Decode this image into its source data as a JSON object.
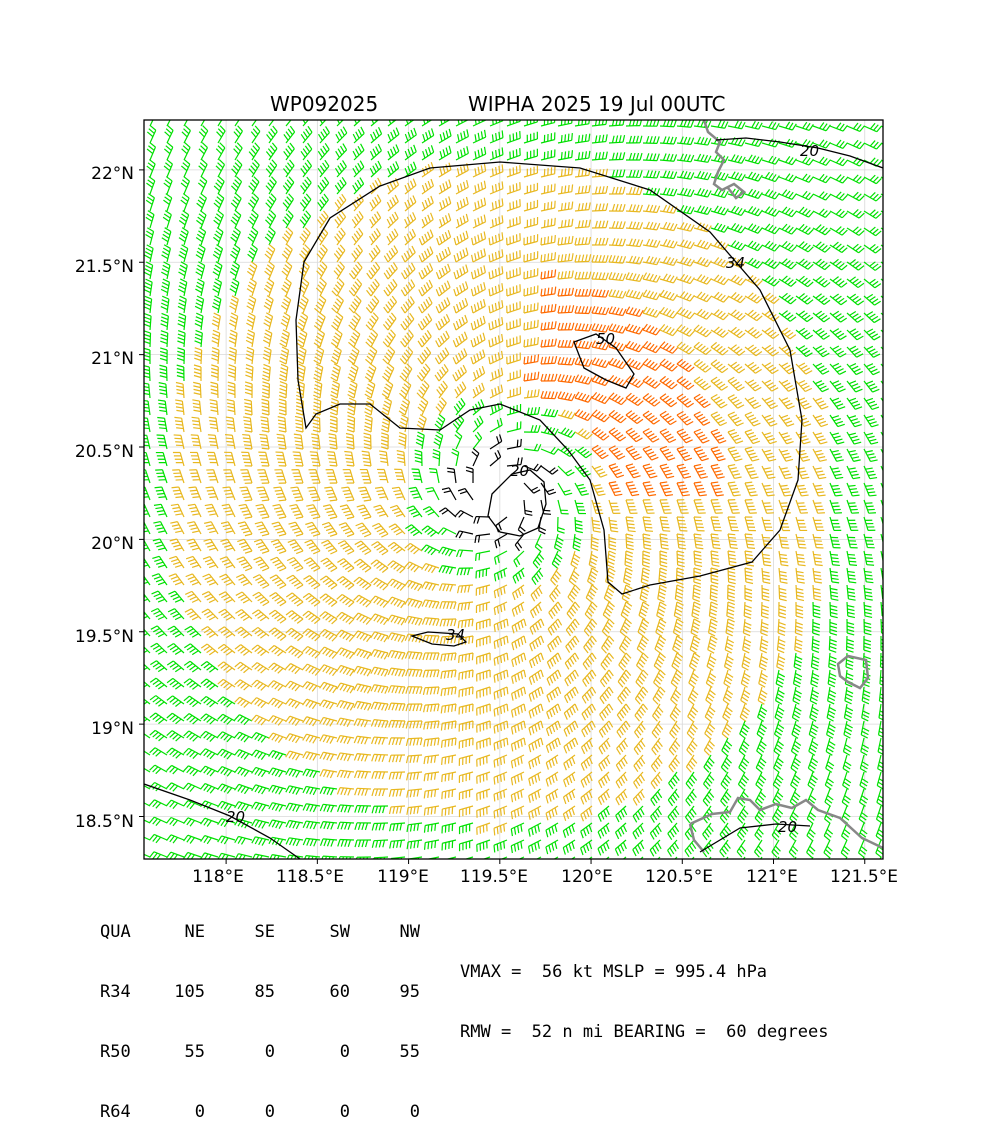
{
  "title": {
    "left": "WP092025",
    "right": "WIPHA 2025 19 Jul 00UTC"
  },
  "map": {
    "lon_range": [
      117.55,
      121.6
    ],
    "lat_range": [
      18.27,
      22.27
    ],
    "lon_ticks": [
      "118°E",
      "118.5°E",
      "119°E",
      "119.5°E",
      "120°E",
      "120.5°E",
      "121°E",
      "121.5°E"
    ],
    "lat_ticks": [
      "18.5°N",
      "19°N",
      "19.5°N",
      "20°N",
      "20.5°N",
      "21°N",
      "21.5°N",
      "22°N"
    ],
    "center": {
      "lon": 119.5,
      "lat": 20.25
    },
    "barb_colors": {
      "weak": "#000000",
      "gale": "#00e000",
      "storm": "#e8b820",
      "hurricane": "#ff6a00"
    },
    "contour_labels": [
      "34",
      "50",
      "20",
      "34",
      "20",
      "20",
      "20"
    ]
  },
  "table": {
    "header": [
      "QUA",
      "NE",
      "SE",
      "SW",
      "NW"
    ],
    "rows": [
      [
        "R34",
        "105",
        "85",
        "60",
        "95"
      ],
      [
        "R50",
        "55",
        "0",
        "0",
        "55"
      ],
      [
        "R64",
        "0",
        "0",
        "0",
        "0"
      ]
    ]
  },
  "stats": {
    "line1": "VMAX =  56 kt MSLP = 995.4 hPa",
    "line2": "RMW =  52 n mi BEARING =  60 degrees"
  }
}
